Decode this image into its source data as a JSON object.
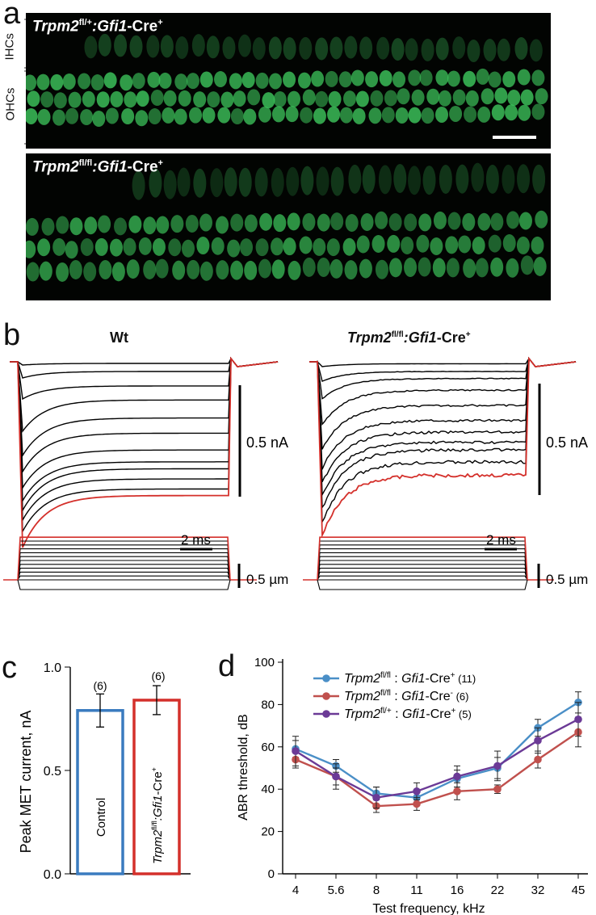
{
  "panel_a": {
    "label": "a",
    "top_genotype": {
      "gene": "Trpm2",
      "allele": "fl/+",
      "sep": ":",
      "cre_gene": "Gfi1",
      "cre_suffix": "-Cre",
      "sup": "+"
    },
    "bottom_genotype": {
      "gene": "Trpm2",
      "allele": "fl/fl",
      "sep": ":",
      "cre_gene": "Gfi1",
      "cre_suffix": "-Cre",
      "sup": "+"
    },
    "row_labels": {
      "ihc": "IHCs",
      "ohc": "OHCs"
    },
    "fluor_color": "#3cc25a"
  },
  "panel_b": {
    "label": "b",
    "left_title": "Wt",
    "right_title": {
      "gene": "Trpm2",
      "allele": "fl/fl",
      "sep": ":",
      "cre_gene": "Gfi1",
      "cre_suffix": "-Cre",
      "sup": "+"
    },
    "current_scale_label": "0.5 nA",
    "time_scale_label": "2 ms",
    "displacement_scale_label": "0.5 µm",
    "trace_color": "#000000",
    "max_trace_color": "#d4302b"
  },
  "panel_c": {
    "label": "c",
    "ylabel": "Peak MET current, nA",
    "yticks": [
      "0.0",
      "0.5",
      "1.0"
    ],
    "n_labels": [
      "(6)",
      "(6)"
    ],
    "bar_labels": {
      "control": "Control",
      "gene": "Trpm2",
      "allele": "fl/fl",
      "sep": ":",
      "cre_gene": "Gfi1",
      "cre_suffix": "-Cre",
      "sup": "+"
    }
  },
  "panel_d": {
    "label": "d",
    "xlabel": "Test frequency, kHz",
    "ylabel": "ABR threshold, dB",
    "yticks": [
      "0",
      "20",
      "40",
      "60",
      "80",
      "100"
    ],
    "xticks": [
      "4",
      "5.6",
      "8",
      "11",
      "16",
      "22",
      "32",
      "45"
    ],
    "legend": [
      {
        "gene": "Trpm2",
        "allele": "fl/fl",
        "sep": " : ",
        "cre_gene": "Gfi1",
        "cre_suffix": "-Cre",
        "sup": "+",
        "n": " (11)"
      },
      {
        "gene": "Trpm2",
        "allele": "fl/fl",
        "sep": " : ",
        "cre_gene": "Gfi1",
        "cre_suffix": "-Cre",
        "sup": "-",
        "n": " (6)"
      },
      {
        "gene": "Trpm2",
        "allele": "fl/+",
        "sep": " : ",
        "cre_gene": "Gfi1",
        "cre_suffix": "-Cre",
        "sup": "+",
        "n": " (5)"
      }
    ]
  },
  "chart_data": [
    {
      "type": "bar",
      "panel": "c",
      "ylabel": "Peak MET current, nA",
      "ylim": [
        0,
        1.0
      ],
      "categories": [
        "Control",
        "Trpm2fl/fl:Gfi1-Cre+"
      ],
      "values": [
        0.79,
        0.84
      ],
      "errors": [
        0.08,
        0.07
      ],
      "n": [
        "(6)",
        "(6)"
      ],
      "colors": [
        "#3a7bbf",
        "#d4302b"
      ]
    },
    {
      "type": "line",
      "panel": "d",
      "xlabel": "Test frequency, kHz",
      "ylabel": "ABR threshold, dB",
      "ylim": [
        0,
        100
      ],
      "x": [
        "4",
        "5.6",
        "8",
        "11",
        "16",
        "22",
        "32",
        "45"
      ],
      "legend_position": "top-left",
      "series": [
        {
          "name": "Trpm2fl/fl : Gfi1-Cre+ (11)",
          "color": "#4a8fc7",
          "values": [
            59,
            51,
            38,
            36,
            45,
            50,
            69,
            81
          ],
          "errors": [
            4,
            3,
            3,
            3,
            4,
            5,
            4,
            5
          ]
        },
        {
          "name": "Trpm2fl/fl : Gfi1-Cre- (6)",
          "color": "#c0504d",
          "values": [
            54,
            46,
            32,
            33,
            39,
            40,
            54,
            67
          ],
          "errors": [
            4,
            4,
            3,
            3,
            4,
            2,
            4,
            7
          ]
        },
        {
          "name": "Trpm2fl/+ : Gfi1-Cre+ (5)",
          "color": "#6b3a96",
          "values": [
            58,
            46,
            36,
            39,
            46,
            51,
            63,
            73
          ],
          "errors": [
            7,
            6,
            5,
            4,
            5,
            7,
            6,
            8
          ]
        }
      ]
    }
  ]
}
